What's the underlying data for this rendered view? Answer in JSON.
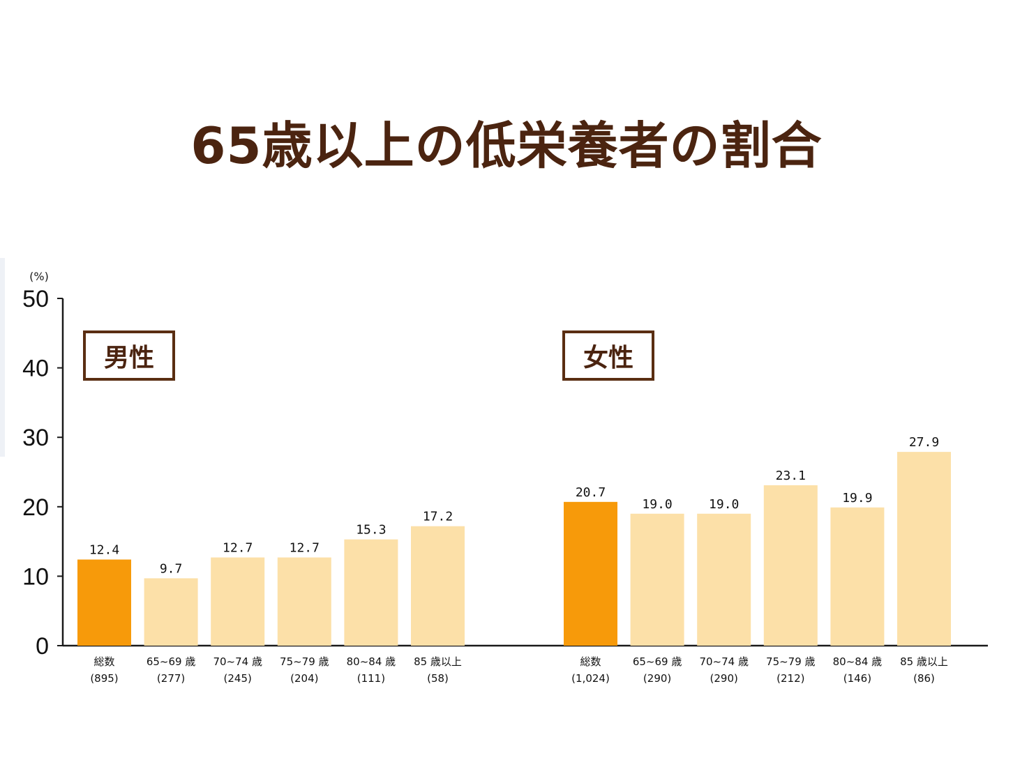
{
  "title": "65歳以上の低栄養者の割合",
  "colors": {
    "title": "#4b2410",
    "total_bar": "#f79a0a",
    "age_bar": "#fce0a8",
    "axis": "#1a1a1a",
    "label_box_border": "#5a2e12"
  },
  "chart_data": {
    "type": "bar",
    "unit_label": "(%)",
    "ylim": [
      0,
      50
    ],
    "yticks": [
      0,
      10,
      20,
      30,
      40,
      50
    ],
    "groups": [
      {
        "name": "男性",
        "bars": [
          {
            "label": "総数",
            "n": "(895)",
            "value": 12.4,
            "value_label": "12.4",
            "kind": "total"
          },
          {
            "label": "65~69 歳",
            "n": "(277)",
            "value": 9.7,
            "value_label": "9.7",
            "kind": "age"
          },
          {
            "label": "70~74 歳",
            "n": "(245)",
            "value": 12.7,
            "value_label": "12.7",
            "kind": "age"
          },
          {
            "label": "75~79 歳",
            "n": "(204)",
            "value": 12.7,
            "value_label": "12.7",
            "kind": "age"
          },
          {
            "label": "80~84 歳",
            "n": "(111)",
            "value": 15.3,
            "value_label": "15.3",
            "kind": "age"
          },
          {
            "label": "85 歳以上",
            "n": "(58)",
            "value": 17.2,
            "value_label": "17.2",
            "kind": "age"
          }
        ]
      },
      {
        "name": "女性",
        "bars": [
          {
            "label": "総数",
            "n": "(1,024)",
            "value": 20.7,
            "value_label": "20.7",
            "kind": "total"
          },
          {
            "label": "65~69 歳",
            "n": "(290)",
            "value": 19.0,
            "value_label": "19.0",
            "kind": "age"
          },
          {
            "label": "70~74 歳",
            "n": "(290)",
            "value": 19.0,
            "value_label": "19.0",
            "kind": "age"
          },
          {
            "label": "75~79 歳",
            "n": "(212)",
            "value": 23.1,
            "value_label": "23.1",
            "kind": "age"
          },
          {
            "label": "80~84 歳",
            "n": "(146)",
            "value": 19.9,
            "value_label": "19.9",
            "kind": "age"
          },
          {
            "label": "85 歳以上",
            "n": "(86)",
            "value": 27.9,
            "value_label": "27.9",
            "kind": "age"
          }
        ]
      }
    ]
  }
}
